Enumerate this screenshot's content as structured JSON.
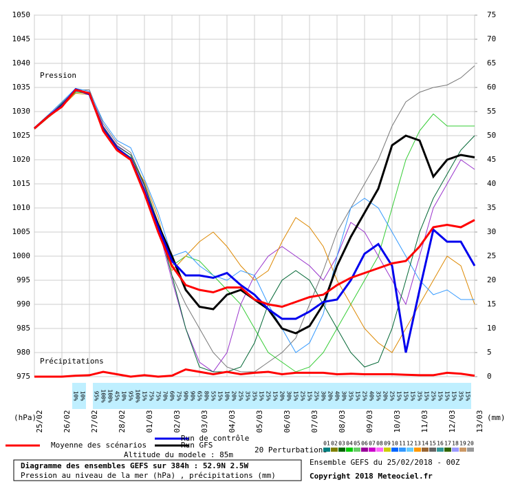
{
  "chart_data": {
    "type": "line",
    "pressure_label": "Pression",
    "precip_label": "Précipitations",
    "ylabel": "(hPa)",
    "y2label": "(mm)",
    "categories": [
      "25/02",
      null,
      "26/02",
      null,
      "27/02",
      null,
      "28/02",
      null,
      "01/03",
      null,
      "02/03",
      null,
      "03/03",
      null,
      "04/03",
      null,
      "05/03",
      null,
      "06/03",
      null,
      "07/03",
      null,
      "08/03",
      null,
      "09/03",
      null,
      "10/03",
      null,
      "11/03",
      null,
      "12/03",
      null,
      "13/03"
    ],
    "ylim": [
      975,
      1050
    ],
    "yticks": [
      975,
      980,
      985,
      990,
      995,
      1000,
      1005,
      1010,
      1015,
      1020,
      1025,
      1030,
      1035,
      1040,
      1045,
      1050
    ],
    "y2lim": [
      0,
      75
    ],
    "y2ticks": [
      0,
      5,
      10,
      15,
      20,
      25,
      30,
      35,
      40,
      45,
      50,
      55,
      60,
      65,
      70,
      75
    ],
    "grid": true,
    "perturbations": [
      {
        "color": "#777777",
        "values": [
          1026.6,
          1029,
          1031.8,
          1034.5,
          1034.5,
          1027.5,
          1023.5,
          1021.5,
          1015,
          1007,
          996,
          990,
          985,
          980,
          977,
          976,
          976,
          978,
          980,
          983,
          990,
          997,
          1005,
          1010,
          1015,
          1020,
          1027,
          1032,
          1034,
          1035,
          1035.5,
          1037,
          1039.5
        ]
      },
      {
        "color": "#33cc33",
        "values": [
          1026.4,
          1028.8,
          1031.3,
          1034,
          1033.8,
          1026.5,
          1022.5,
          1020.5,
          1014,
          1006,
          998,
          1000,
          999,
          996,
          993,
          990,
          985,
          980,
          978,
          976,
          977,
          980,
          985,
          990,
          995,
          1000,
          1010,
          1020,
          1026,
          1029.5,
          1027,
          1027,
          1027
        ]
      },
      {
        "color": "#9933cc",
        "values": [
          1026.5,
          1029.2,
          1031.5,
          1034.2,
          1034,
          1027,
          1023,
          1021,
          1014.5,
          1006,
          995,
          985,
          978,
          976,
          980,
          990,
          996,
          1000,
          1002,
          1000,
          998,
          995,
          1000,
          1007,
          1005,
          1000,
          995,
          990,
          1000,
          1010,
          1015,
          1020,
          1018
        ]
      },
      {
        "color": "#dd8800",
        "values": [
          1026.3,
          1028.7,
          1031,
          1033.8,
          1033.5,
          1026,
          1022,
          1020,
          1015.5,
          1008,
          997,
          1000,
          1003,
          1005,
          1002,
          998,
          995,
          997,
          1003,
          1008,
          1006,
          1002,
          995,
          990,
          985,
          982,
          980,
          985,
          990,
          995,
          1000,
          998,
          990
        ]
      },
      {
        "color": "#3399ff",
        "values": [
          1026.7,
          1029.3,
          1032,
          1034.8,
          1034.2,
          1028,
          1024,
          1022.5,
          1016,
          1009,
          1000,
          1001,
          998,
          996,
          995,
          997,
          996,
          990,
          985,
          980,
          982,
          988,
          1000,
          1010,
          1012,
          1010,
          1005,
          1000,
          995,
          992,
          993,
          991,
          991
        ]
      },
      {
        "color": "#006633",
        "values": [
          1026.5,
          1028.9,
          1031.6,
          1034.3,
          1033.9,
          1026.8,
          1022.8,
          1021,
          1014.8,
          1006.5,
          996,
          985,
          977,
          976,
          976,
          977,
          982,
          990,
          995,
          997,
          995,
          990,
          985,
          980,
          977,
          978,
          985,
          995,
          1005,
          1012,
          1017,
          1022,
          1025
        ]
      }
    ],
    "series": [
      {
        "name": "Moyenne des scénarios",
        "color": "#ff0000",
        "values": [
          1026.5,
          1029,
          1031,
          1034.5,
          1033.8,
          1026,
          1022,
          1020,
          1013,
          1005,
          998,
          994,
          993,
          992.5,
          993.5,
          993.5,
          991,
          990,
          989.5,
          990.5,
          991.5,
          992,
          994,
          995.5,
          996.5,
          997.5,
          998.5,
          999,
          1002,
          1006,
          1006.5,
          1006,
          1007.5
        ]
      },
      {
        "name": "Run de contrôle",
        "color": "#0000ee",
        "values": [
          1026.5,
          1029,
          1031.2,
          1034.6,
          1033.6,
          1026.3,
          1022.4,
          1020.2,
          1013.5,
          1006,
          999,
          996,
          996,
          995.5,
          996.5,
          994,
          992,
          989,
          987,
          987,
          988.5,
          990.5,
          991,
          995,
          1000.5,
          1002.5,
          998,
          980,
          993,
          1005.5,
          1003,
          1003,
          998
        ]
      },
      {
        "name": "Run GFS",
        "color": "#000000",
        "values": [
          1026.5,
          1029,
          1031.1,
          1034.5,
          1033.7,
          1026.2,
          1022.2,
          1020.1,
          1013.2,
          1006.5,
          1000,
          993,
          989.5,
          989,
          992,
          993,
          991,
          989,
          985,
          984,
          985.5,
          990,
          998,
          1004,
          1009,
          1014,
          1023,
          1025,
          1024,
          1016.5,
          1020,
          1021,
          1020.5
        ]
      }
    ],
    "precipitation": {
      "color": "#ff0000",
      "axis": "y2",
      "values": [
        0,
        0,
        0,
        0.2,
        0.3,
        1,
        0.5,
        0,
        0.3,
        0,
        0.2,
        1.5,
        1,
        0.5,
        1,
        0.5,
        0.8,
        1,
        0.5,
        0.8,
        0.8,
        0.8,
        0.5,
        0.6,
        0.5,
        0.5,
        0.5,
        0.4,
        0.3,
        0.3,
        0.8,
        0.6,
        0.2
      ]
    },
    "rain_probability": {
      "values": [
        null,
        null,
        null,
        null,
        null,
        null,
        10,
        10,
        null,
        95,
        100,
        100,
        45,
        10,
        95,
        100,
        15,
        75,
        75,
        70,
        60,
        75,
        90,
        90,
        65,
        80,
        55,
        15,
        10,
        20,
        25,
        35,
        35,
        15,
        25,
        15,
        20,
        30,
        15,
        25,
        15,
        25,
        30,
        20,
        40,
        30,
        35,
        15,
        25,
        40,
        35,
        20,
        25,
        15,
        15,
        15,
        35,
        15,
        25,
        15,
        15,
        15,
        35,
        15,
        null
      ],
      "value_labels": [
        null,
        null,
        null,
        null,
        null,
        null,
        "10%",
        "10%",
        null,
        "95%",
        "100%",
        "100%",
        "45%",
        "10%",
        "95%",
        "100%",
        "15%",
        "75%",
        "75%",
        "70%",
        "60%",
        "75%",
        "90%",
        "90%",
        "65%",
        "80%",
        "55%",
        "15%",
        "10%",
        "20%",
        "25%",
        "35%",
        "35%",
        "15%",
        "25%",
        "15%",
        "20%",
        "30%",
        "15%",
        "25%",
        "15%",
        "25%",
        "30%",
        "20%",
        "40%",
        "30%",
        "35%",
        "15%",
        "25%",
        "40%",
        "35%",
        "20%",
        "25%",
        "15%",
        "15%",
        "15%",
        "35%",
        "15%",
        "25%",
        "15%",
        "15%",
        "15%",
        "35%",
        "15%",
        null
      ]
    },
    "altitude": "Altitude du modele : 85m",
    "perturbations_label": "20 Perturbations",
    "perturbation_keys": [
      {
        "name": "01",
        "color": "#008080"
      },
      {
        "name": "02",
        "color": "#808000"
      },
      {
        "name": "03",
        "color": "#006600"
      },
      {
        "name": "04",
        "color": "#00cc00"
      },
      {
        "name": "05",
        "color": "#66cc66"
      },
      {
        "name": "06",
        "color": "#990099"
      },
      {
        "name": "07",
        "color": "#cc00cc"
      },
      {
        "name": "08",
        "color": "#ff66ff"
      },
      {
        "name": "09",
        "color": "#cccc00"
      },
      {
        "name": "10",
        "color": "#0066ff"
      },
      {
        "name": "11",
        "color": "#3399ff"
      },
      {
        "name": "12",
        "color": "#66ccff"
      },
      {
        "name": "13",
        "color": "#ff9900"
      },
      {
        "name": "14",
        "color": "#996633"
      },
      {
        "name": "15",
        "color": "#666666"
      },
      {
        "name": "16",
        "color": "#339999"
      },
      {
        "name": "17",
        "color": "#336600"
      },
      {
        "name": "18",
        "color": "#9999ff"
      },
      {
        "name": "19",
        "color": "#cc9966"
      },
      {
        "name": "20",
        "color": "#999999"
      }
    ],
    "footer": {
      "title": "Diagramme des ensembles GEFS sur 384h : 52.9N 2.5W",
      "subtitle": "Pression au niveau de la mer (hPa) , précipitations (mm)",
      "run": "Ensemble GEFS du 25/02/2018 - 00Z",
      "copyright": "Copyright 2018 Meteociel.fr"
    }
  }
}
